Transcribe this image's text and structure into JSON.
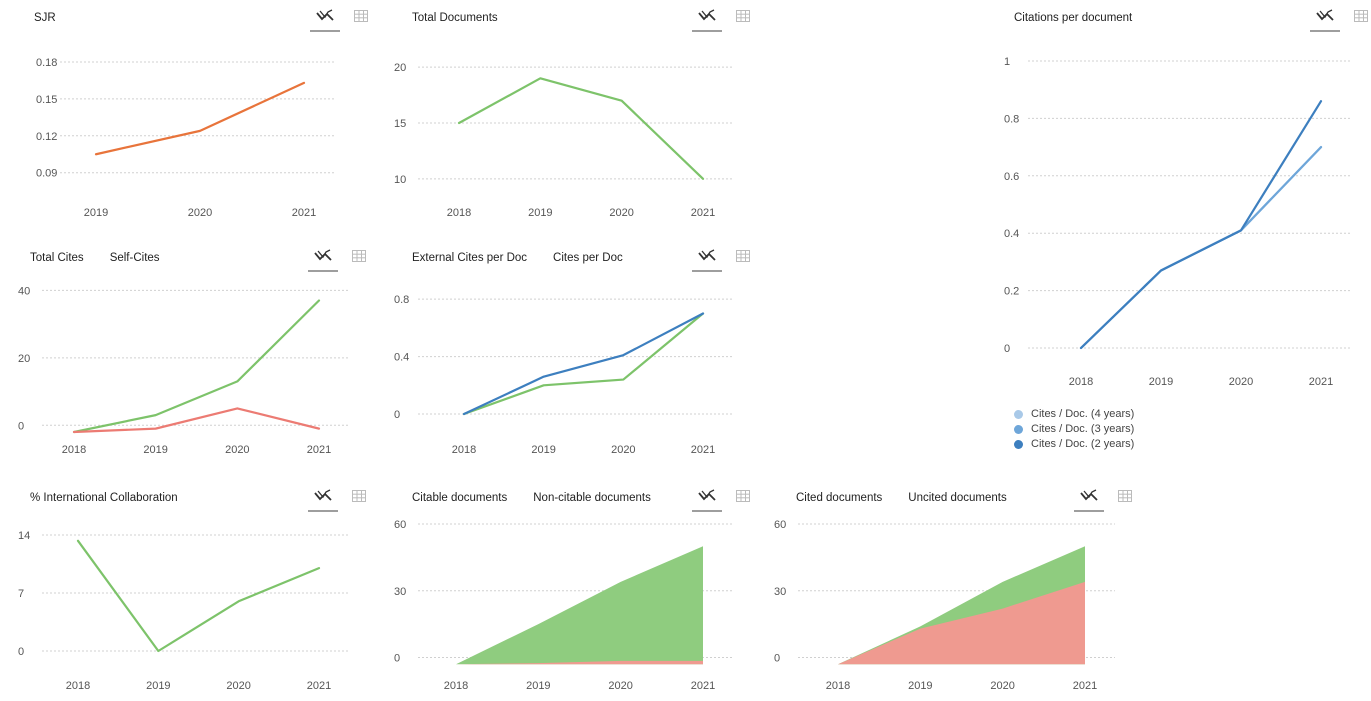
{
  "toolbar": {
    "chart_view_icon": "line-chart-icon",
    "table_view_icon": "table-grid-icon"
  },
  "colors": {
    "orange": "#e8743b",
    "green": "#7dc36a",
    "red": "#ec7b73",
    "blue": "#3d7fbf",
    "blue_light": "#a9c9e8",
    "blue_mid": "#6ea6d9",
    "area_green": "#8fcc7f",
    "area_red": "#ef9a90",
    "grid": "#cccccc",
    "axis_text": "#555555"
  },
  "chart_data": [
    {
      "id": "sjr",
      "type": "line",
      "title": "SJR",
      "categories": [
        "2019",
        "2020",
        "2021"
      ],
      "ylim": [
        0.08,
        0.18
      ],
      "yticks": [
        "0.09",
        "0.12",
        "0.15",
        "0.18"
      ],
      "ytick_values": [
        0.09,
        0.12,
        0.15,
        0.18
      ],
      "series": [
        {
          "values": [
            0.105,
            0.124,
            0.163
          ],
          "color": "#e8743b"
        }
      ]
    },
    {
      "id": "total-documents",
      "type": "line",
      "title": "Total Documents",
      "categories": [
        "2018",
        "2019",
        "2020",
        "2021"
      ],
      "ylim": [
        9,
        21
      ],
      "yticks": [
        "10",
        "15",
        "20"
      ],
      "ytick_values": [
        10,
        15,
        20
      ],
      "series": [
        {
          "values": [
            15,
            19,
            17,
            10
          ],
          "color": "#7dc36a"
        }
      ]
    },
    {
      "id": "citations-per-document",
      "type": "line",
      "title": "Citations per document",
      "categories": [
        "2018",
        "2019",
        "2020",
        "2021"
      ],
      "ylim": [
        0,
        1
      ],
      "yticks": [
        "0",
        "0.2",
        "0.4",
        "0.6",
        "0.8",
        "1"
      ],
      "ytick_values": [
        0,
        0.2,
        0.4,
        0.6,
        0.8,
        1
      ],
      "legend": [
        "Cites / Doc. (4 years)",
        "Cites / Doc. (3 years)",
        "Cites / Doc. (2 years)"
      ],
      "series": [
        {
          "name": "Cites / Doc. (4 years)",
          "values": [
            0,
            0.27,
            0.41,
            0.7
          ],
          "color": "#a9c9e8"
        },
        {
          "name": "Cites / Doc. (3 years)",
          "values": [
            0,
            0.27,
            0.41,
            0.7
          ],
          "color": "#6ea6d9"
        },
        {
          "name": "Cites / Doc. (2 years)",
          "values": [
            0,
            0.27,
            0.41,
            0.86
          ],
          "color": "#3d7fbf"
        }
      ]
    },
    {
      "id": "total-cites",
      "type": "line",
      "title": "Total Cites",
      "title2": "Self-Cites",
      "categories": [
        "2018",
        "2019",
        "2020",
        "2021"
      ],
      "ylim": [
        -2,
        41
      ],
      "yticks": [
        "0",
        "20",
        "40"
      ],
      "ytick_values": [
        0,
        20,
        40
      ],
      "series": [
        {
          "name": "Total Cites",
          "values": [
            -2,
            3,
            13,
            37
          ],
          "color": "#7dc36a"
        },
        {
          "name": "Self-Cites",
          "values": [
            -2,
            -1,
            5,
            -1
          ],
          "color": "#ec7b73"
        }
      ]
    },
    {
      "id": "external-cites-per-doc",
      "type": "line",
      "title": "External Cites per Doc",
      "title2": "Cites per Doc",
      "categories": [
        "2018",
        "2019",
        "2020",
        "2021"
      ],
      "ylim": [
        0,
        0.85
      ],
      "yticks": [
        "0",
        "0.4",
        "0.8"
      ],
      "ytick_values": [
        0,
        0.4,
        0.8
      ],
      "series": [
        {
          "name": "External Cites per Doc",
          "values": [
            0,
            0.2,
            0.24,
            0.7
          ],
          "color": "#7dc36a"
        },
        {
          "name": "Cites per Doc",
          "values": [
            0,
            0.26,
            0.41,
            0.7
          ],
          "color": "#3d7fbf"
        }
      ]
    },
    {
      "id": "international-collaboration",
      "type": "line",
      "title": "% International Collaboration",
      "categories": [
        "2018",
        "2019",
        "2020",
        "2021"
      ],
      "ylim": [
        0,
        14
      ],
      "yticks": [
        "0",
        "7",
        "14"
      ],
      "ytick_values": [
        0,
        7,
        14
      ],
      "series": [
        {
          "values": [
            13.3,
            0,
            6,
            10
          ],
          "color": "#7dc36a"
        }
      ]
    },
    {
      "id": "citable-documents",
      "type": "area",
      "title": "Citable documents",
      "title2": "Non-citable documents",
      "categories": [
        "2018",
        "2019",
        "2020",
        "2021"
      ],
      "ylim": [
        -2,
        60
      ],
      "yticks": [
        "0",
        "30",
        "60"
      ],
      "ytick_values": [
        0,
        30,
        60
      ],
      "series": [
        {
          "name": "Citable documents",
          "values": [
            -3,
            15,
            34,
            50
          ],
          "color": "#8fcc7f"
        },
        {
          "name": "Non-citable documents",
          "values": [
            -3,
            -2.5,
            -1.5,
            -1.5
          ],
          "color": "#ef9a90"
        }
      ]
    },
    {
      "id": "cited-documents",
      "type": "area",
      "title": "Cited documents",
      "title2": "Uncited documents",
      "categories": [
        "2018",
        "2019",
        "2020",
        "2021"
      ],
      "ylim": [
        -2,
        60
      ],
      "yticks": [
        "0",
        "30",
        "60"
      ],
      "ytick_values": [
        0,
        30,
        60
      ],
      "series": [
        {
          "name": "Cited documents",
          "values": [
            -3,
            14,
            34,
            50
          ],
          "color": "#8fcc7f"
        },
        {
          "name": "Uncited documents",
          "values": [
            -3,
            13,
            22,
            34
          ],
          "color": "#ef9a90"
        }
      ]
    }
  ]
}
